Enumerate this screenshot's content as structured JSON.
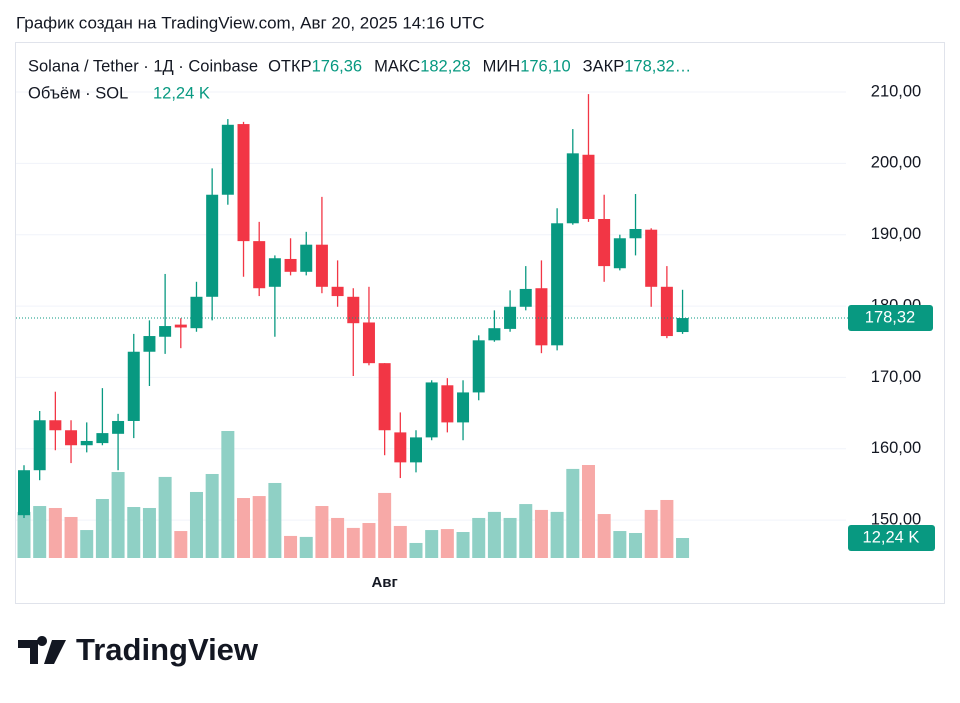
{
  "header": {
    "caption": "График создан на TradingView.com, Авг 20, 2025 14:16 UTC"
  },
  "chart_data": {
    "type": "candlestick",
    "symbol": "Solana / Tether · 1Д · Coinbase",
    "ohlc_names": [
      "ОТКР",
      "МАКС",
      "МИН",
      "ЗАКР"
    ],
    "ohlc_labels": [
      "176,36",
      "182,28",
      "176,10",
      "178,32…"
    ],
    "volume_title": "Объём · SOL",
    "volume_label": "12,24 K",
    "last_price_label": "178,32",
    "categories": [
      null,
      null,
      null,
      null,
      null,
      null,
      null,
      null,
      null,
      null,
      null,
      null,
      null,
      null,
      null,
      null,
      null,
      null,
      null,
      null,
      null,
      null,
      null,
      "Авг",
      null,
      null,
      null,
      null,
      null,
      null,
      null,
      null,
      null,
      null,
      null,
      null,
      null,
      null,
      null,
      null,
      null,
      null,
      null
    ],
    "open": [
      150.7,
      157.0,
      164.0,
      162.6,
      160.5,
      160.8,
      162.1,
      163.9,
      173.6,
      175.7,
      177.4,
      176.9,
      181.3,
      195.6,
      205.5,
      189.1,
      182.7,
      186.6,
      184.8,
      188.6,
      182.7,
      181.3,
      177.7,
      172.0,
      162.3,
      158.1,
      161.6,
      168.9,
      163.7,
      167.9,
      175.2,
      176.8,
      179.9,
      182.5,
      174.5,
      191.6,
      201.2,
      192.2,
      185.3,
      189.5,
      190.7,
      182.7,
      176.36
    ],
    "high": [
      157.7,
      165.3,
      168.0,
      164.0,
      163.7,
      168.5,
      164.9,
      176.1,
      178.0,
      184.5,
      178.3,
      183.4,
      199.3,
      206.2,
      205.8,
      191.8,
      187.1,
      189.5,
      190.4,
      195.3,
      186.4,
      182.5,
      182.7,
      172.0,
      165.1,
      162.6,
      169.6,
      169.9,
      169.6,
      175.9,
      179.4,
      182.2,
      185.6,
      186.4,
      193.7,
      204.8,
      209.7,
      195.6,
      190.0,
      195.7,
      190.9,
      185.6,
      182.28
    ],
    "low": [
      150.3,
      155.6,
      159.8,
      158.0,
      159.5,
      160.5,
      157.0,
      161.5,
      168.8,
      173.3,
      174.1,
      176.4,
      178.0,
      194.2,
      184.1,
      181.4,
      175.7,
      184.3,
      184.3,
      181.8,
      179.9,
      170.2,
      171.7,
      159.1,
      155.9,
      156.7,
      161.2,
      162.3,
      161.2,
      166.8,
      175.0,
      176.4,
      179.4,
      173.4,
      173.8,
      191.4,
      191.8,
      183.4,
      185.0,
      187.1,
      179.9,
      175.5,
      176.1
    ],
    "close": [
      157.0,
      164.0,
      162.6,
      160.5,
      161.1,
      162.2,
      163.9,
      173.6,
      175.8,
      177.2,
      177.0,
      181.3,
      195.6,
      205.4,
      189.1,
      182.5,
      186.7,
      184.8,
      188.6,
      182.7,
      181.4,
      177.6,
      172.0,
      162.6,
      158.1,
      161.6,
      169.3,
      163.7,
      167.9,
      175.2,
      176.9,
      179.9,
      182.4,
      174.5,
      191.6,
      201.4,
      192.2,
      185.6,
      189.5,
      190.8,
      182.7,
      175.8,
      178.32
    ],
    "volume": [
      28.2,
      31.8,
      30.6,
      25.1,
      17.1,
      36.1,
      52.6,
      31.2,
      30.6,
      49.6,
      16.5,
      40.4,
      51.4,
      77.7,
      36.7,
      37.9,
      45.9,
      13.5,
      12.9,
      31.8,
      24.5,
      18.4,
      21.4,
      39.8,
      19.6,
      9.2,
      17.1,
      17.7,
      15.9,
      24.5,
      28.2,
      24.5,
      33.0,
      29.4,
      28.2,
      54.5,
      56.9,
      26.9,
      16.5,
      15.3,
      29.4,
      35.5,
      12.24
    ],
    "up_color": "#089981",
    "down_color": "#f23645",
    "up_volume_color": "#8fd0c5",
    "down_volume_color": "#f7a9a7",
    "ylim": [
      144.7,
      217.0
    ],
    "yticks": [
      {
        "value": 150,
        "label": "150,00"
      },
      {
        "value": 160,
        "label": "160,00"
      },
      {
        "value": 170,
        "label": "170,00"
      },
      {
        "value": 180,
        "label": "180,00"
      },
      {
        "value": 190,
        "label": "190,00"
      },
      {
        "value": 200,
        "label": "200,00"
      },
      {
        "value": 210,
        "label": "210,00"
      }
    ],
    "grid": true
  },
  "footer": {
    "brand": "TradingView"
  }
}
